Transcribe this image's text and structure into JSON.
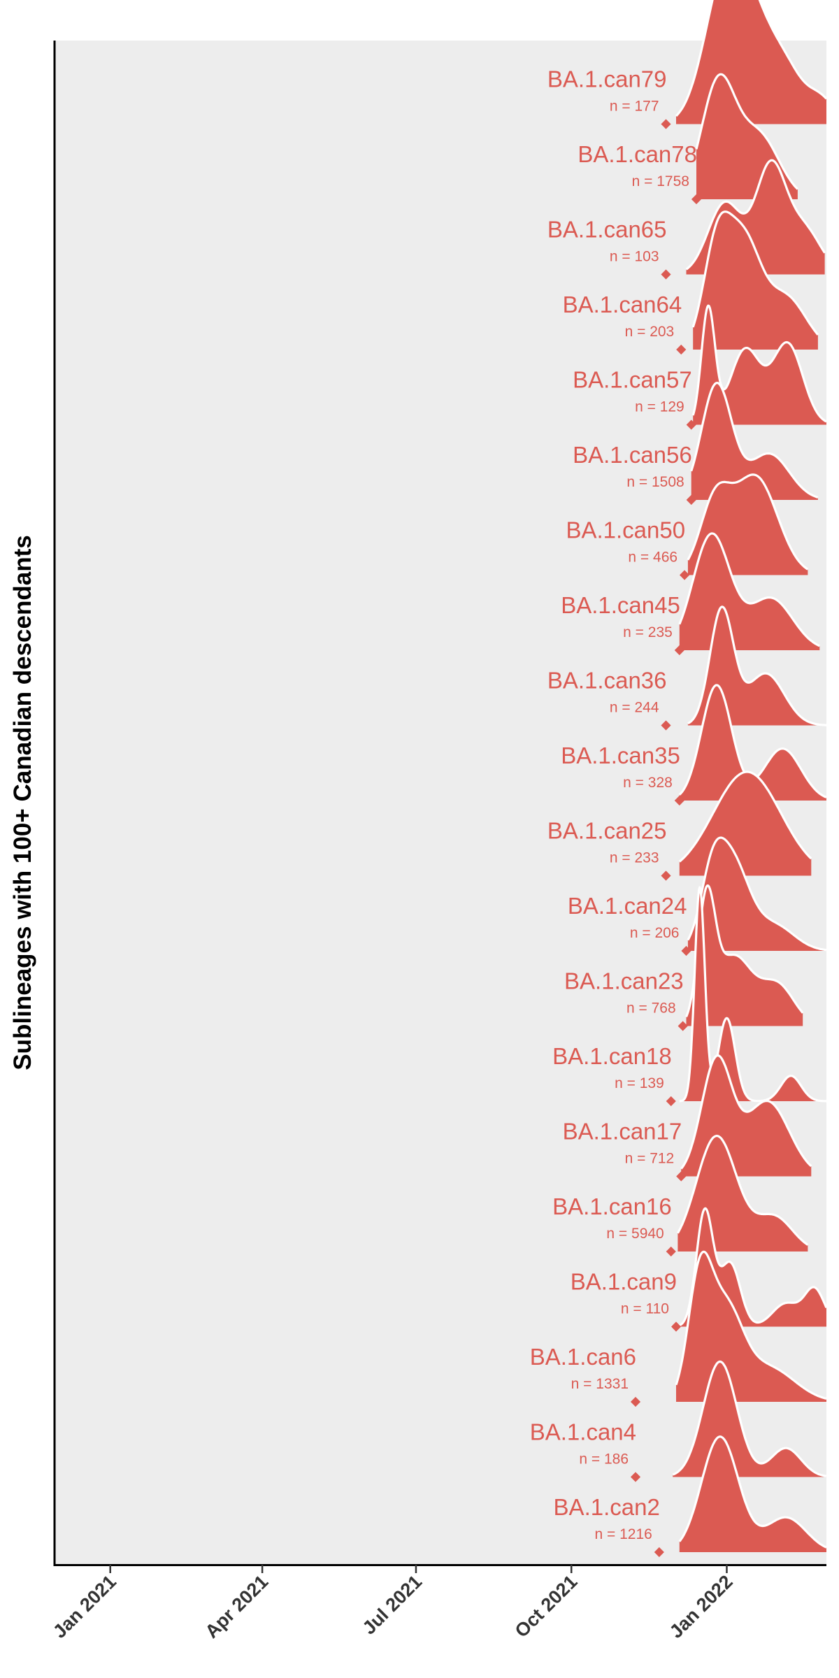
{
  "chart_data": {
    "type": "area",
    "subtype": "ridgeline",
    "ylabel": "Sublineages with 100+ Canadian descendants",
    "xlabel": "",
    "x_ticks": [
      "Jan 2021",
      "Apr 2021",
      "Jul 2021",
      "Oct 2021",
      "Jan 2022"
    ],
    "x_tick_dates": [
      "2021-01-01",
      "2021-04-01",
      "2021-07-01",
      "2021-10-01",
      "2022-01-01"
    ],
    "xlim": [
      "2020-11-29",
      "2022-03-01"
    ],
    "fill_color": "#DB5A52",
    "outline_color": "#ffffff",
    "panel_color": "#EDEDED",
    "n_prefix": "n = ",
    "series": [
      {
        "name": "BA.1.can79",
        "n": "177",
        "origin_date": "2021-11-26",
        "start": "2021-12-02",
        "end": "2022-03-01",
        "peaks": [
          [
            "2021-12-30",
            1.0,
            12
          ],
          [
            "2022-01-16",
            0.85,
            14
          ],
          [
            "2022-02-07",
            0.3,
            10
          ],
          [
            "2022-02-26",
            0.2,
            8
          ]
        ]
      },
      {
        "name": "BA.1.can78",
        "n": "1758",
        "origin_date": "2021-12-14",
        "start": "2021-12-14",
        "end": "2022-02-12",
        "peaks": [
          [
            "2021-12-27",
            1.0,
            10
          ],
          [
            "2022-01-20",
            0.55,
            12
          ]
        ]
      },
      {
        "name": "BA.1.can65",
        "n": "103",
        "origin_date": "2021-11-26",
        "start": "2021-12-08",
        "end": "2022-02-28",
        "peaks": [
          [
            "2021-12-31",
            0.62,
            10
          ],
          [
            "2022-01-27",
            0.92,
            9
          ],
          [
            "2022-02-16",
            0.38,
            10
          ]
        ]
      },
      {
        "name": "BA.1.can64",
        "n": "203",
        "origin_date": "2021-12-05",
        "start": "2021-12-12",
        "end": "2022-02-24",
        "peaks": [
          [
            "2021-12-26",
            0.85,
            8
          ],
          [
            "2022-01-11",
            0.9,
            10
          ],
          [
            "2022-02-05",
            0.45,
            12
          ]
        ]
      },
      {
        "name": "BA.1.can57",
        "n": "129",
        "origin_date": "2021-12-11",
        "start": "2021-12-12",
        "end": "2022-03-01",
        "peaks": [
          [
            "2021-12-21",
            1.0,
            4
          ],
          [
            "2022-01-12",
            0.65,
            9
          ],
          [
            "2022-02-06",
            0.7,
            9
          ]
        ]
      },
      {
        "name": "BA.1.can56",
        "n": "1508",
        "origin_date": "2021-12-11",
        "start": "2021-12-11",
        "end": "2022-02-24",
        "peaks": [
          [
            "2021-12-26",
            1.0,
            9
          ],
          [
            "2022-01-26",
            0.4,
            12
          ]
        ]
      },
      {
        "name": "BA.1.can50",
        "n": "466",
        "origin_date": "2021-12-07",
        "start": "2021-12-09",
        "end": "2022-02-18",
        "peaks": [
          [
            "2021-12-25",
            0.6,
            9
          ],
          [
            "2022-01-18",
            0.85,
            13
          ]
        ]
      },
      {
        "name": "BA.1.can45",
        "n": "235",
        "origin_date": "2021-12-04",
        "start": "2021-12-04",
        "end": "2022-02-25",
        "peaks": [
          [
            "2021-12-23",
            1.0,
            11
          ],
          [
            "2022-01-27",
            0.45,
            13
          ]
        ]
      },
      {
        "name": "BA.1.can36",
        "n": "244",
        "origin_date": "2021-11-26",
        "start": "2021-12-09",
        "end": "2022-03-01",
        "peaks": [
          [
            "2021-12-29",
            1.0,
            7
          ],
          [
            "2022-01-24",
            0.45,
            11
          ]
        ]
      },
      {
        "name": "BA.1.can35",
        "n": "328",
        "origin_date": "2021-12-04",
        "start": "2021-12-04",
        "end": "2022-03-01",
        "peaks": [
          [
            "2021-12-26",
            1.0,
            9
          ],
          [
            "2022-02-03",
            0.45,
            11
          ]
        ]
      },
      {
        "name": "BA.1.can25",
        "n": "233",
        "origin_date": "2021-11-26",
        "start": "2021-12-04",
        "end": "2022-02-20",
        "peaks": [
          [
            "2022-01-13",
            0.9,
            20
          ]
        ]
      },
      {
        "name": "BA.1.can24",
        "n": "206",
        "origin_date": "2021-12-08",
        "start": "2021-12-09",
        "end": "2022-03-01",
        "peaks": [
          [
            "2021-12-23",
            0.5,
            7
          ],
          [
            "2022-01-04",
            0.75,
            10
          ],
          [
            "2022-01-29",
            0.22,
            12
          ]
        ]
      },
      {
        "name": "BA.1.can23",
        "n": "768",
        "origin_date": "2021-12-06",
        "start": "2021-12-08",
        "end": "2022-02-15",
        "peaks": [
          [
            "2021-12-20",
            1.0,
            5
          ],
          [
            "2022-01-05",
            0.6,
            11
          ],
          [
            "2022-01-31",
            0.35,
            10
          ]
        ]
      },
      {
        "name": "BA.1.can18",
        "n": "139",
        "origin_date": "2021-11-29",
        "start": "2021-12-04",
        "end": "2022-03-01",
        "peaks": [
          [
            "2021-12-16",
            1.85,
            3
          ],
          [
            "2022-01-01",
            0.72,
            5
          ],
          [
            "2022-02-08",
            0.22,
            6
          ]
        ]
      },
      {
        "name": "BA.1.can17",
        "n": "712",
        "origin_date": "2021-12-05",
        "start": "2021-12-05",
        "end": "2022-02-20",
        "peaks": [
          [
            "2021-12-26",
            1.0,
            9
          ],
          [
            "2022-01-25",
            0.65,
            13
          ]
        ]
      },
      {
        "name": "BA.1.can16",
        "n": "5940",
        "origin_date": "2021-11-29",
        "start": "2021-12-03",
        "end": "2022-02-18",
        "peaks": [
          [
            "2021-12-26",
            1.0,
            12
          ],
          [
            "2022-01-29",
            0.3,
            11
          ]
        ]
      },
      {
        "name": "BA.1.can9",
        "n": "110",
        "origin_date": "2021-12-02",
        "start": "2021-11-29",
        "end": "2022-03-01",
        "peaks": [
          [
            "2021-12-19",
            1.0,
            5
          ],
          [
            "2022-01-03",
            0.55,
            6
          ],
          [
            "2022-02-05",
            0.2,
            8
          ],
          [
            "2022-02-22",
            0.32,
            6
          ]
        ]
      },
      {
        "name": "BA.1.can6",
        "n": "1331",
        "origin_date": "2021-11-08",
        "start": "2021-12-02",
        "end": "2022-03-01",
        "peaks": [
          [
            "2021-12-16",
            1.0,
            7
          ],
          [
            "2021-12-31",
            0.75,
            10
          ],
          [
            "2022-01-25",
            0.3,
            16
          ]
        ]
      },
      {
        "name": "BA.1.can4",
        "n": "186",
        "origin_date": "2021-11-08",
        "start": "2021-11-30",
        "end": "2022-03-01",
        "peaks": [
          [
            "2021-12-28",
            1.0,
            10
          ],
          [
            "2022-02-05",
            0.25,
            9
          ]
        ]
      },
      {
        "name": "BA.1.can2",
        "n": "1216",
        "origin_date": "2021-11-22",
        "start": "2021-12-04",
        "end": "2022-03-01",
        "peaks": [
          [
            "2021-12-28",
            1.0,
            11
          ],
          [
            "2022-02-05",
            0.3,
            12
          ]
        ]
      }
    ]
  }
}
